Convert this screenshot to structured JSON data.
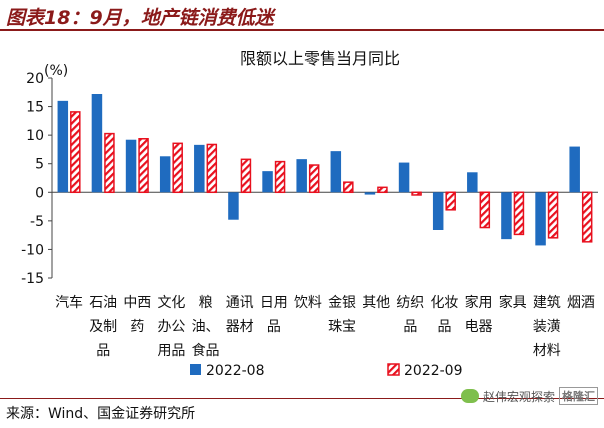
{
  "header": {
    "title": "图表18：9月，地产链消费低迷"
  },
  "footer": {
    "source": "来源：Wind、国金证券研究所"
  },
  "watermark": {
    "text": "赵伟宏观探索",
    "logo": "格隆汇"
  },
  "colors": {
    "s2022_08": "#1f6bbf",
    "s2022_09": "#e8101e"
  },
  "chart_data": {
    "type": "bar",
    "title": "限额以上零售当月同比",
    "ylabel": "(%)",
    "ylim": [
      -15,
      20
    ],
    "yticks": [
      20,
      15,
      10,
      5,
      0,
      -5,
      -10,
      -15
    ],
    "grid": false,
    "legend_position": "bottom",
    "categories": [
      [
        "汽车"
      ],
      [
        "石油",
        "及制",
        "品"
      ],
      [
        "中西",
        "药"
      ],
      [
        "文化",
        "办公",
        "用品"
      ],
      [
        "粮",
        "油、",
        "食品"
      ],
      [
        "通讯",
        "器材"
      ],
      [
        "日用",
        "品"
      ],
      [
        "饮料"
      ],
      [
        "金银",
        "珠宝"
      ],
      [
        "其他"
      ],
      [
        "纺织",
        "品"
      ],
      [
        "化妆",
        "品"
      ],
      [
        "家用",
        "电器"
      ],
      [
        "家具"
      ],
      [
        "建筑",
        "装潢",
        "材料"
      ],
      [
        "烟酒"
      ]
    ],
    "series": [
      {
        "name": "2022-08",
        "values": [
          16,
          17.2,
          9.2,
          6.3,
          8.3,
          -4.8,
          3.7,
          5.8,
          7.2,
          -0.4,
          5.2,
          -6.6,
          3.5,
          -8.2,
          -9.3,
          8.0
        ]
      },
      {
        "name": "2022-09",
        "values": [
          14.2,
          10.4,
          9.5,
          8.7,
          8.5,
          5.9,
          5.5,
          4.9,
          1.9,
          1.0,
          -0.6,
          -3.2,
          -6.3,
          -7.5,
          -8.1,
          -8.8
        ]
      }
    ]
  }
}
